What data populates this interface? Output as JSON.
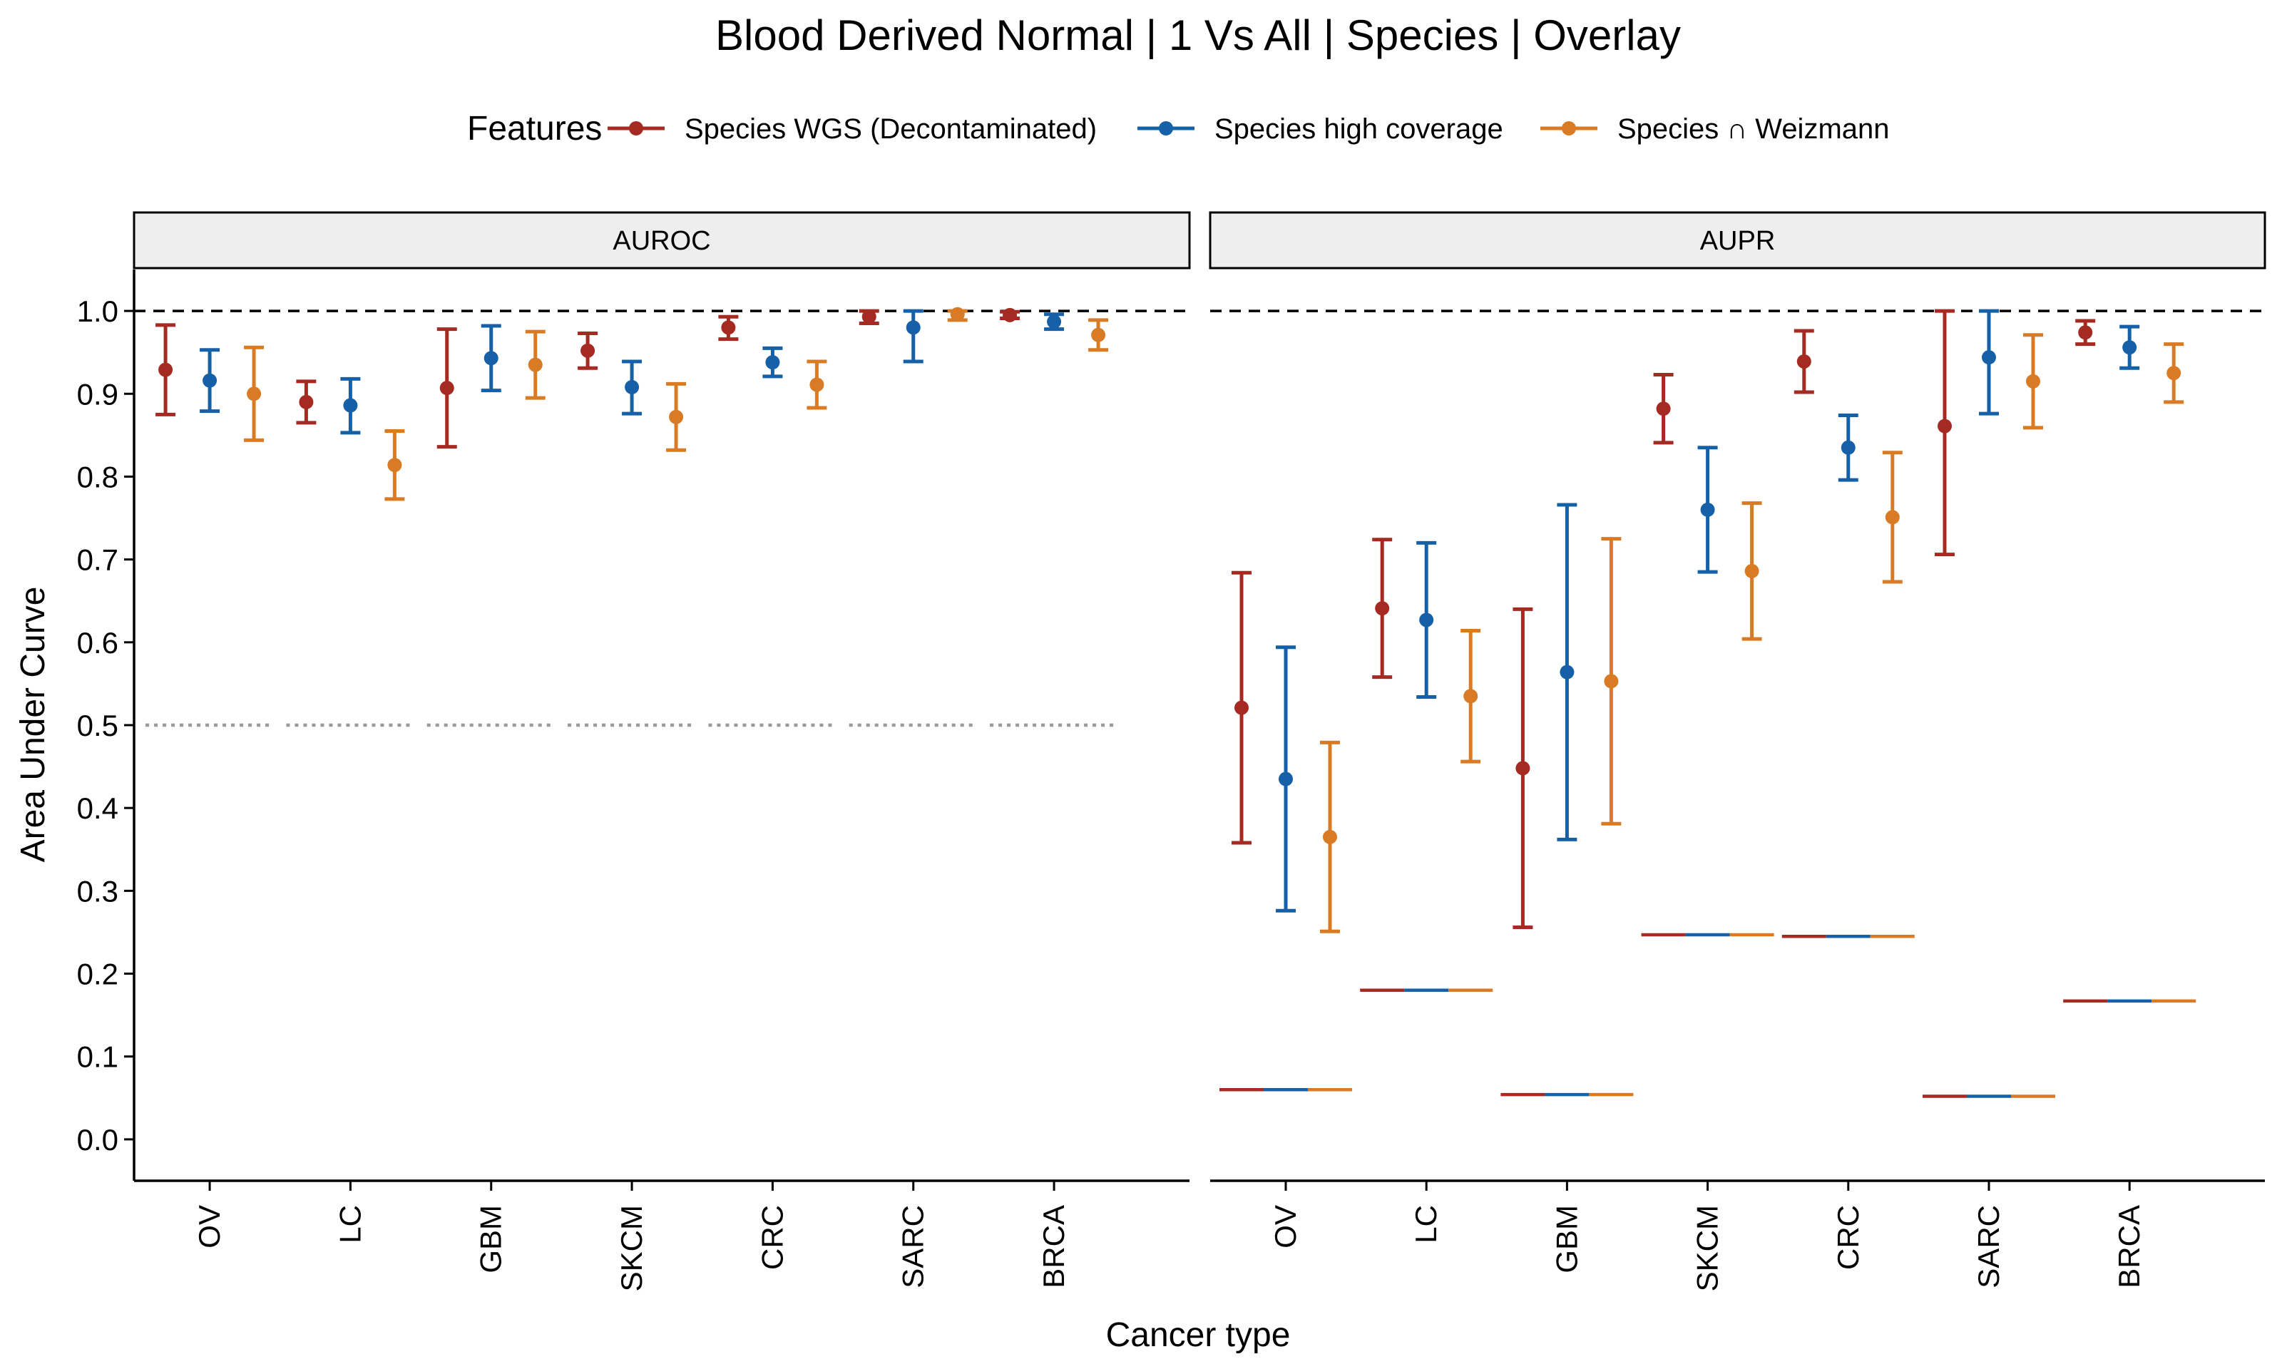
{
  "chart_data": {
    "type": "scatter",
    "title": "Blood Derived Normal | 1 Vs All | Species | Overlay",
    "xlabel": "Cancer type",
    "ylabel": "Area Under Curve",
    "ylim": [
      -0.05,
      1.05
    ],
    "yticks": [
      "0.0",
      "0.1",
      "0.2",
      "0.3",
      "0.4",
      "0.5",
      "0.6",
      "0.7",
      "0.8",
      "0.9",
      "1.0"
    ],
    "grid": false,
    "legend": {
      "title": "Features",
      "placement": "top",
      "entries": [
        {
          "name": "Species WGS (Decontaminated)",
          "color": "#a52a22"
        },
        {
          "name": "Species high coverage",
          "color": "#1660a8"
        },
        {
          "name": "Species ∩ Weizmann",
          "color": "#d97b24"
        }
      ]
    },
    "categories": [
      "OV",
      "LC",
      "GBM",
      "SKCM",
      "CRC",
      "SARC",
      "BRCA"
    ],
    "reference_lines": {
      "perfect": 1.0,
      "auroc_chance": 0.5
    },
    "panels": [
      {
        "label": "AUROC",
        "series": [
          {
            "name": "Species WGS (Decontaminated)",
            "values": [
              0.929,
              0.89,
              0.907,
              0.952,
              0.98,
              0.993,
              0.995
            ],
            "lower": [
              0.875,
              0.865,
              0.836,
              0.931,
              0.966,
              0.985,
              0.991
            ],
            "upper": [
              0.983,
              0.915,
              0.978,
              0.973,
              0.993,
              1.0,
              0.999
            ]
          },
          {
            "name": "Species high coverage",
            "values": [
              0.916,
              0.886,
              0.943,
              0.908,
              0.938,
              0.98,
              0.987
            ],
            "lower": [
              0.879,
              0.853,
              0.904,
              0.876,
              0.921,
              0.939,
              0.978
            ],
            "upper": [
              0.953,
              0.918,
              0.982,
              0.939,
              0.955,
              1.0,
              0.996
            ]
          },
          {
            "name": "Species ∩ Weizmann",
            "values": [
              0.9,
              0.814,
              0.935,
              0.872,
              0.911,
              0.996,
              0.971
            ],
            "lower": [
              0.844,
              0.773,
              0.895,
              0.832,
              0.883,
              0.989,
              0.953
            ],
            "upper": [
              0.956,
              0.855,
              0.975,
              0.912,
              0.939,
              1.0,
              0.989
            ]
          }
        ]
      },
      {
        "label": "AUPR",
        "baselines": [
          0.06,
          0.18,
          0.054,
          0.247,
          0.245,
          0.052,
          0.167
        ],
        "series": [
          {
            "name": "Species WGS (Decontaminated)",
            "values": [
              0.521,
              0.641,
              0.448,
              0.882,
              0.939,
              0.861,
              0.974
            ],
            "lower": [
              0.358,
              0.558,
              0.256,
              0.841,
              0.902,
              0.706,
              0.96
            ],
            "upper": [
              0.684,
              0.724,
              0.64,
              0.923,
              0.976,
              1.0,
              0.988
            ]
          },
          {
            "name": "Species high coverage",
            "values": [
              0.435,
              0.627,
              0.564,
              0.76,
              0.835,
              0.944,
              0.956
            ],
            "lower": [
              0.276,
              0.534,
              0.362,
              0.685,
              0.796,
              0.876,
              0.931
            ],
            "upper": [
              0.594,
              0.72,
              0.766,
              0.835,
              0.874,
              1.0,
              0.981
            ]
          },
          {
            "name": "Species ∩ Weizmann",
            "values": [
              0.365,
              0.535,
              0.553,
              0.686,
              0.751,
              0.915,
              0.925
            ],
            "lower": [
              0.251,
              0.456,
              0.381,
              0.604,
              0.673,
              0.859,
              0.89
            ],
            "upper": [
              0.479,
              0.614,
              0.725,
              0.768,
              0.829,
              0.971,
              0.96
            ]
          }
        ]
      }
    ]
  }
}
